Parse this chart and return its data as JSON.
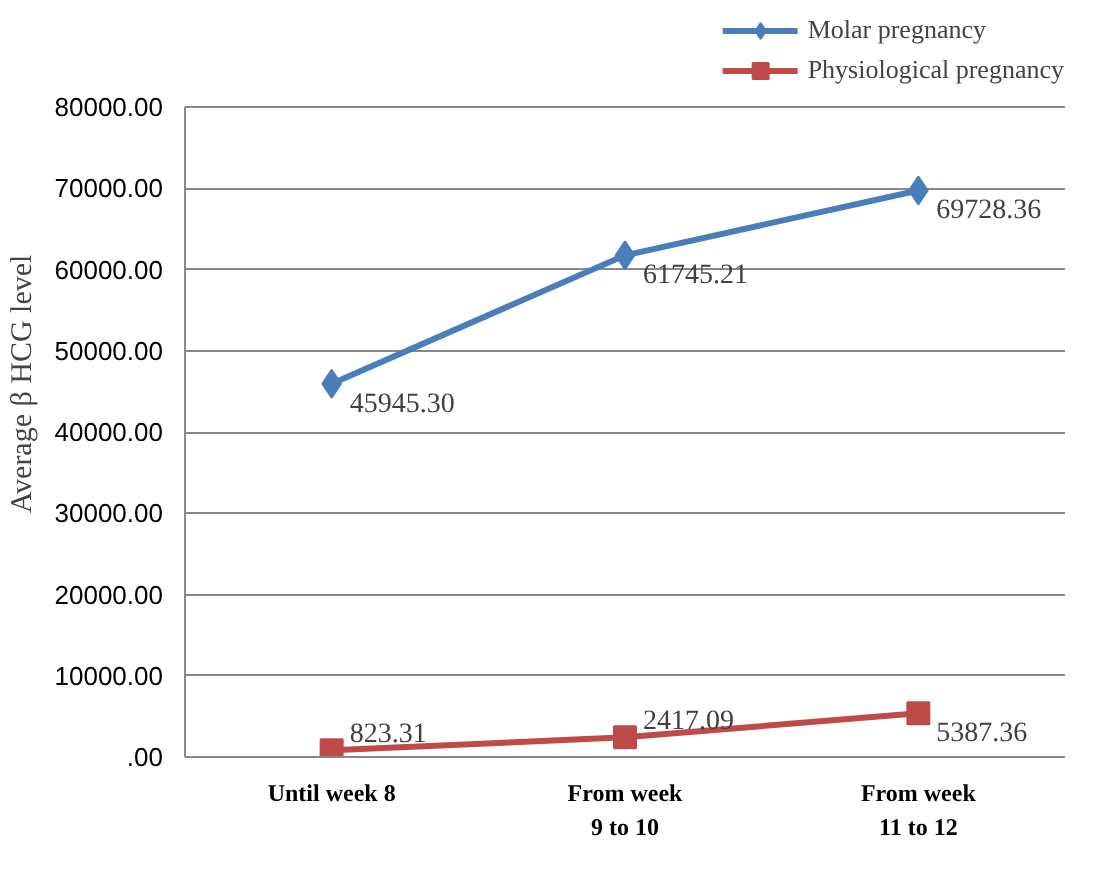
{
  "chart_data": {
    "type": "line",
    "ylabel": "Average β HCG level",
    "categories": [
      "Until week 8",
      "From week\n9 to 10",
      "From week\n11 to 12"
    ],
    "series": [
      {
        "name": "Molar pregnancy",
        "color": "#4a7ebb",
        "marker": "diamond",
        "values": [
          45945.3,
          61745.21,
          69728.36
        ],
        "value_labels": [
          "45945.30",
          "61745.21",
          "69728.36"
        ]
      },
      {
        "name": "Physiological pregnancy",
        "color": "#be4b48",
        "marker": "square",
        "values": [
          823.31,
          2417.09,
          5387.36
        ],
        "value_labels": [
          "823.31",
          "2417.09",
          "5387.36"
        ]
      }
    ],
    "ylim": [
      0,
      80000
    ],
    "yticks": [
      {
        "value": 0,
        "label": ".00"
      },
      {
        "value": 10000,
        "label": "10000.00"
      },
      {
        "value": 20000,
        "label": "20000.00"
      },
      {
        "value": 30000,
        "label": "30000.00"
      },
      {
        "value": 40000,
        "label": "40000.00"
      },
      {
        "value": 50000,
        "label": "50000.00"
      },
      {
        "value": 60000,
        "label": "60000.00"
      },
      {
        "value": 70000,
        "label": "70000.00"
      },
      {
        "value": 80000,
        "label": "80000.00"
      }
    ],
    "grid": "y",
    "legend": "top right",
    "line_style": "solid"
  }
}
